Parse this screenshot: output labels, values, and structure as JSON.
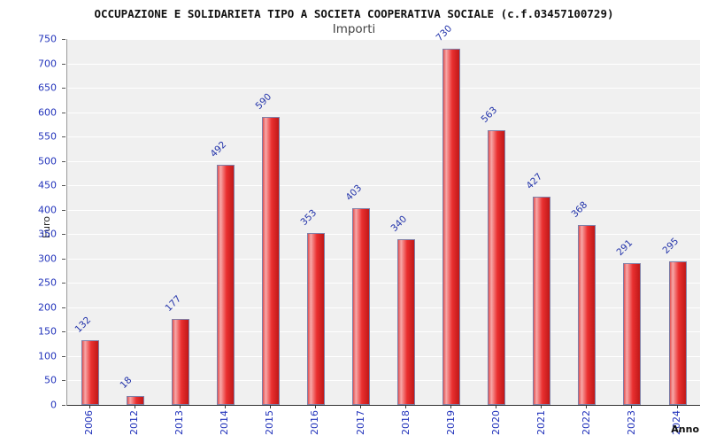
{
  "chart_data": {
    "type": "bar",
    "title": "OCCUPAZIONE E SOLIDARIETA TIPO A SOCIETA COOPERATIVA SOCIALE (c.f.03457100729)",
    "subtitle": "Importi",
    "categories": [
      "2006",
      "2012",
      "2013",
      "2014",
      "2015",
      "2016",
      "2017",
      "2018",
      "2019",
      "2020",
      "2021",
      "2022",
      "2023",
      "2024"
    ],
    "values": [
      132,
      18,
      177,
      492,
      590,
      353,
      403,
      340,
      730,
      563,
      427,
      368,
      291,
      295
    ],
    "xlabel": "Anno",
    "ylabel": "Euro",
    "ylim": [
      0,
      750
    ],
    "ytick_step": 50,
    "grid": true,
    "legend": "none",
    "colors": {
      "bar_fill": "#e03030",
      "bar_highlight": "#f7a8a8",
      "bar_border": "#8080a8",
      "value_label": "#2233aa",
      "tick_label": "#2233bb",
      "plot_bg": "#f0f0f0",
      "gridline": "#ffffff",
      "background": "#ffffff"
    }
  }
}
